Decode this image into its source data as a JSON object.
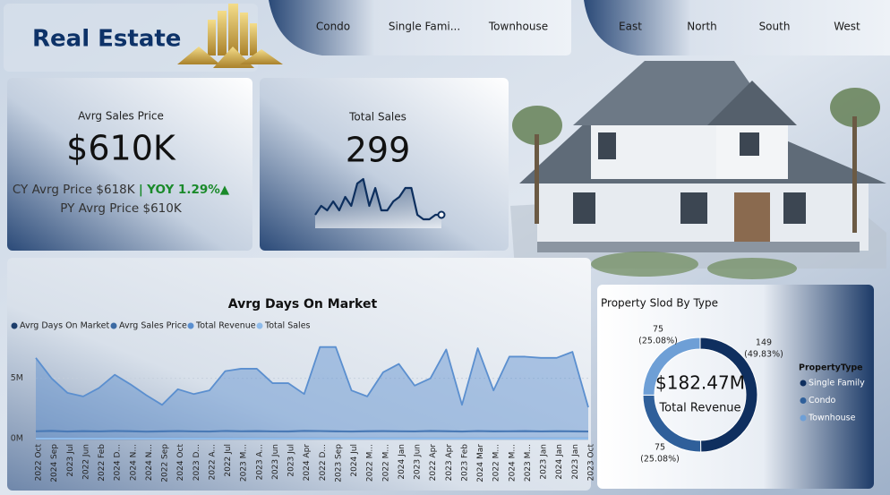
{
  "header": {
    "title": "Real Estate"
  },
  "property_slicer": [
    "Condo",
    "Single Fami...",
    "Townhouse"
  ],
  "region_slicer": [
    "East",
    "North",
    "South",
    "West"
  ],
  "kpi_price": {
    "label": "Avrg Sales Price",
    "value": "$610K",
    "cy": "CY Avrg Price $618K",
    "separator": "|",
    "yoy": "YOY 1.29%▲",
    "py": "PY Avrg Price $610K"
  },
  "kpi_sales": {
    "label": "Total Sales",
    "value": "299"
  },
  "metric_tabs": [
    "Avrg Days On Market",
    "Avrg Sales Price",
    "Total Revenue",
    "Total Sales"
  ],
  "chart_data": [
    {
      "type": "sparkline",
      "color": "#0d2f5e",
      "values": [
        10,
        12,
        11,
        13,
        11,
        14,
        12,
        17,
        18,
        12,
        16,
        11,
        11,
        13,
        14,
        16,
        16,
        10,
        9,
        9,
        10,
        10
      ]
    },
    {
      "type": "line",
      "title": "Avrg Days On Market",
      "categories": [
        "2022 Oct",
        "2024 Sep",
        "2023 Jul",
        "2022 Jun",
        "2022 Feb",
        "2024 D...",
        "2024 N...",
        "2024 N...",
        "2022 Sep",
        "2024 Oct",
        "2023 D...",
        "2022 A...",
        "2022 Jul",
        "2023 M...",
        "2023 A...",
        "2023 Jun",
        "2023 Jul",
        "2024 Apr",
        "2022 D...",
        "2023 Sep",
        "2024 Jul",
        "2022 M...",
        "2022 M...",
        "2024 Jan",
        "2023 Jun",
        "2022 Apr",
        "2023 Apr",
        "2023 Feb",
        "2024 Mar",
        "2022 M...",
        "2024 M...",
        "2023 M...",
        "2023 Jan",
        "2024 Jan",
        "2023 Jan",
        "2023 Oct"
      ],
      "ylim": [
        0,
        7800000
      ],
      "yticks": [
        {
          "value": 0,
          "label": "0M"
        },
        {
          "value": 5000000,
          "label": "5M"
        }
      ],
      "series": [
        {
          "name": "Avrg Days On Market",
          "color": "#1c3d6b",
          "values": [
            62,
            58,
            60,
            65,
            59,
            61,
            63,
            57,
            60,
            62,
            64,
            58,
            61,
            60,
            59,
            63,
            62,
            60,
            58,
            61,
            64,
            60,
            59,
            62,
            61,
            60,
            63,
            58,
            60,
            62,
            61,
            59,
            60,
            62,
            61,
            60
          ]
        },
        {
          "name": "Avrg Sales Price",
          "color": "#3c6aa3",
          "values": [
            610000,
            640000,
            590000,
            620000,
            600000,
            630000,
            615000,
            580000,
            605000,
            625000,
            600000,
            590000,
            635000,
            610000,
            620000,
            600000,
            595000,
            640000,
            625000,
            605000,
            590000,
            615000,
            620000,
            610000,
            600000,
            630000,
            615000,
            590000,
            625000,
            605000,
            610000,
            620000,
            600000,
            615000,
            605000,
            590000
          ]
        },
        {
          "name": "Total Revenue",
          "color": "#5b8fcf",
          "values": [
            6700000,
            5000000,
            3800000,
            3500000,
            4200000,
            5300000,
            4500000,
            3600000,
            2800000,
            4100000,
            3700000,
            4000000,
            5600000,
            5800000,
            5800000,
            4600000,
            4600000,
            3700000,
            7600000,
            7600000,
            4000000,
            3500000,
            5500000,
            6200000,
            4400000,
            5000000,
            7400000,
            2800000,
            7500000,
            4000000,
            6800000,
            6800000,
            6700000,
            6700000,
            7200000,
            2600000
          ]
        },
        {
          "name": "Total Sales",
          "color": "#8fbbea",
          "values": [
            11,
            8,
            6,
            6,
            7,
            9,
            7,
            6,
            5,
            7,
            6,
            7,
            9,
            10,
            10,
            8,
            8,
            6,
            12,
            12,
            7,
            6,
            9,
            10,
            7,
            8,
            12,
            5,
            12,
            7,
            11,
            11,
            11,
            11,
            12,
            4
          ]
        }
      ]
    },
    {
      "type": "donut",
      "title": "Property Slod By Type",
      "center_value": "$182.47M",
      "center_label": "Total Revenue",
      "legend_title": "PropertyType",
      "categories": [
        "Single Family",
        "Condo",
        "Townhouse"
      ],
      "values": [
        149,
        75,
        75
      ],
      "percent_labels": [
        "(49.83%)",
        "(25.08%)",
        "(25.08%)"
      ],
      "colors": [
        "#0f2f5f",
        "#2f5f9a",
        "#6e9fd6"
      ]
    }
  ]
}
